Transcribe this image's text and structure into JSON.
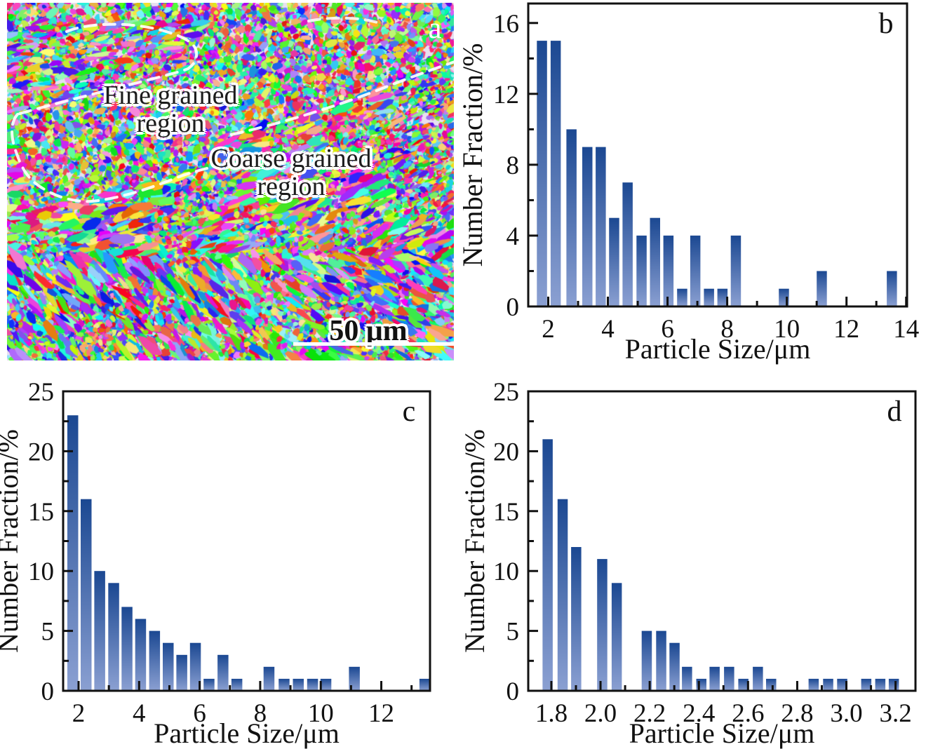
{
  "panel_a": {
    "letter": "a",
    "fine_label": {
      "line1": "Fine grained",
      "line2": "region"
    },
    "coarse_label": {
      "line1": "Coarse grained",
      "line2": "region"
    },
    "scale_bar_label": "50 μm"
  },
  "colors": {
    "bar_top": "#1b4892",
    "bar_bottom": "#8ba0d2",
    "axis": "#111111",
    "dash": "#ffffff"
  },
  "chart_data": [
    {
      "panel": "b",
      "type": "bar",
      "title": "",
      "xlabel": "Particle Size/μm",
      "ylabel": "Number Fraction/%",
      "xlim": [
        1.33,
        14.03
      ],
      "ylim": [
        0,
        17.1
      ],
      "xticks": [
        2,
        4,
        6,
        8,
        10,
        12,
        14
      ],
      "xtick_labels": [
        "2",
        "4",
        "6",
        "8",
        "10",
        "12",
        "14"
      ],
      "xminor": [
        3,
        5,
        7,
        9,
        11,
        13
      ],
      "yticks": [
        0,
        4,
        8,
        12,
        16
      ],
      "ytick_labels": [
        "0",
        "4",
        "8",
        "12",
        "16"
      ],
      "yminor": [
        2,
        6,
        10,
        14
      ],
      "bar_width": 0.34,
      "x": [
        1.79,
        2.25,
        2.78,
        3.31,
        3.76,
        4.21,
        4.66,
        5.13,
        5.58,
        6.03,
        6.49,
        6.93,
        7.39,
        7.84,
        8.29,
        9.9,
        11.17,
        13.52
      ],
      "values": [
        15,
        15,
        10,
        9,
        9,
        5,
        7,
        4,
        5,
        4,
        1,
        4,
        1,
        1,
        4,
        1,
        2,
        2
      ]
    },
    {
      "panel": "c",
      "type": "bar",
      "title": "",
      "xlabel": "Particle Size/μm",
      "ylabel": "Number Fraction/%",
      "xlim": [
        1.49,
        13.61
      ],
      "ylim": [
        0,
        25
      ],
      "xticks": [
        2,
        4,
        6,
        8,
        10,
        12
      ],
      "xtick_labels": [
        "2",
        "4",
        "6",
        "8",
        "10",
        "12"
      ],
      "xminor": [
        3,
        5,
        7,
        9,
        11,
        13
      ],
      "yticks": [
        0,
        5,
        10,
        15,
        20,
        25
      ],
      "ytick_labels": [
        "0",
        "5",
        "10",
        "15",
        "20",
        "25"
      ],
      "yminor": [
        2.5,
        7.5,
        12.5,
        17.5,
        22.5
      ],
      "bar_width": 0.36,
      "x": [
        1.81,
        2.25,
        2.7,
        3.16,
        3.6,
        4.05,
        4.51,
        4.96,
        5.41,
        5.86,
        6.31,
        6.77,
        7.23,
        8.29,
        8.79,
        9.26,
        9.73,
        10.17,
        11.11,
        13.44
      ],
      "values": [
        23,
        16,
        10,
        9,
        7,
        6,
        5,
        4,
        3,
        4,
        1,
        3,
        1,
        2,
        1,
        1,
        1,
        1,
        2,
        1
      ]
    },
    {
      "panel": "d",
      "type": "bar",
      "title": "",
      "xlabel": "Particle Size/μm",
      "ylabel": "Number Fraction/%",
      "xlim": [
        1.706,
        3.281
      ],
      "ylim": [
        0,
        25
      ],
      "xticks": [
        1.8,
        2.0,
        2.2,
        2.4,
        2.6,
        2.8,
        3.0,
        3.2
      ],
      "xtick_labels": [
        "1.8",
        "2.0",
        "2.2",
        "2.4",
        "2.6",
        "2.8",
        "3.0",
        "3.2"
      ],
      "xminor": [
        1.9,
        2.1,
        2.3,
        2.5,
        2.7,
        2.9,
        3.1
      ],
      "yticks": [
        0,
        5,
        10,
        15,
        20,
        25
      ],
      "ytick_labels": [
        "0",
        "5",
        "10",
        "15",
        "20",
        "25"
      ],
      "yminor": [
        2.5,
        7.5,
        12.5,
        17.5,
        22.5
      ],
      "bar_width": 0.0415,
      "x": [
        1.785,
        1.846,
        1.901,
        2.007,
        2.066,
        2.188,
        2.247,
        2.301,
        2.352,
        2.41,
        2.464,
        2.523,
        2.581,
        2.64,
        2.694,
        2.867,
        2.926,
        2.983,
        3.081,
        3.138,
        3.193
      ],
      "values": [
        21,
        16,
        12,
        11,
        9,
        5,
        5,
        4,
        2,
        1,
        2,
        2,
        1,
        2,
        1,
        1,
        1,
        1,
        1,
        1,
        1
      ]
    }
  ]
}
